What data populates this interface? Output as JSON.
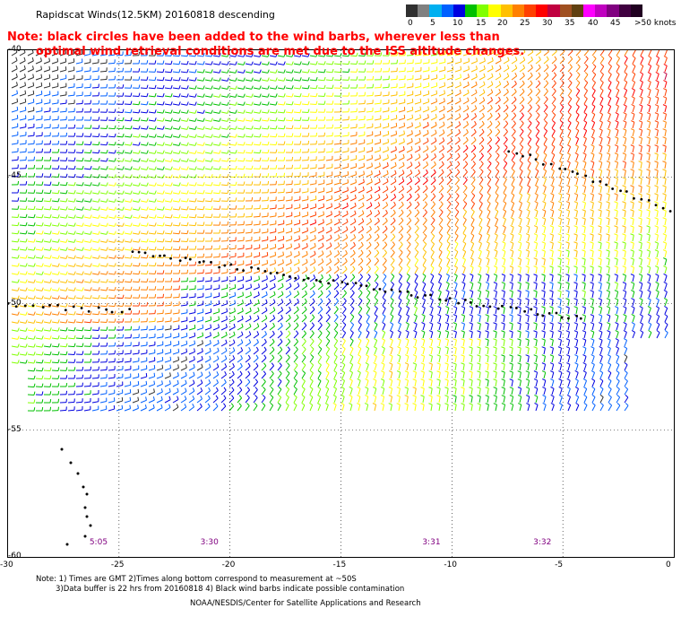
{
  "title": "Rapidscat Winds(12.5KM) 20160818 descending",
  "note_line1": "Note: black circles have been added to the wind barbs, wherever less than",
  "note_line2": "optimal wind retrieval conditions are met due to the ISS altitude changes.",
  "legend": {
    "colors": [
      "#303030",
      "#808080",
      "#00b0f0",
      "#0060ff",
      "#0000e0",
      "#00c000",
      "#80ff00",
      "#ffff00",
      "#ffc000",
      "#ff8000",
      "#ff4000",
      "#ff0000",
      "#c00040",
      "#a05020",
      "#604010",
      "#ff00ff",
      "#c000c0",
      "#800080",
      "#400040",
      "#200020"
    ],
    "labels": [
      "0",
      "5",
      "10",
      "15",
      "20",
      "25",
      "30",
      "35",
      "40",
      "45",
      ">50 knots"
    ]
  },
  "lat_labels": [
    "-40",
    "-45",
    "-50",
    "-55",
    "-60"
  ],
  "lon_labels": [
    "-30",
    "-25",
    "-20",
    "-15",
    "-10",
    "-5",
    "0"
  ],
  "times": [
    "5:05",
    "3:30",
    "3:31",
    "3:32"
  ],
  "footer": {
    "line1": "Note: 1) Times are GMT 2)Times along bottom correspond to measurement at ~50S",
    "line2": "3)Data buffer is 22 hrs from 20160818 4) Black wind barbs indicate possible contamination",
    "line3": "NOAA/NESDIS/Center for Satellite Applications and Research"
  },
  "colors": {
    "note": "#ff0000",
    "time": "#800080"
  },
  "map_data": {
    "lon_range": [
      -30,
      0
    ],
    "lat_range": [
      -60,
      -40
    ],
    "time_lons": [
      -25,
      -20,
      -10,
      -5
    ]
  }
}
